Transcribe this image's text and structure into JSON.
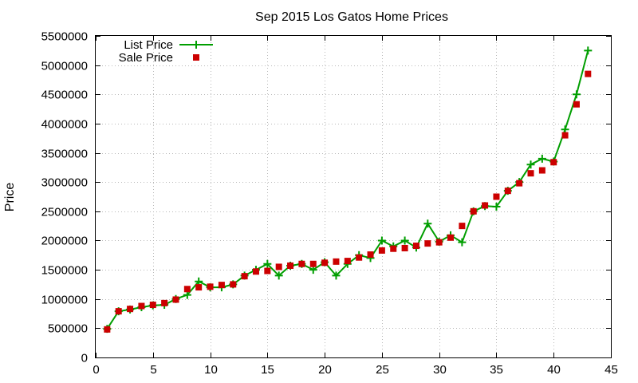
{
  "chart_data": {
    "type": "line",
    "title": "Sep 2015 Los Gatos Home Prices",
    "xlabel": "",
    "ylabel": "Price",
    "xlim": [
      0,
      45
    ],
    "ylim": [
      0,
      5500000
    ],
    "x_ticks": [
      "0",
      "5",
      "10",
      "15",
      "20",
      "25",
      "30",
      "35",
      "40",
      "45"
    ],
    "y_ticks": [
      "0",
      "500000",
      "1000000",
      "1500000",
      "2000000",
      "2500000",
      "3000000",
      "3500000",
      "4000000",
      "4500000",
      "5000000",
      "5500000"
    ],
    "grid": true,
    "legend_position": "top-left",
    "series": [
      {
        "name": "List Price",
        "style": "line-plus",
        "color": "#009e00",
        "x": [
          1,
          2,
          3,
          4,
          5,
          6,
          7,
          8,
          9,
          10,
          11,
          12,
          13,
          14,
          15,
          16,
          17,
          18,
          19,
          20,
          21,
          22,
          23,
          24,
          25,
          26,
          27,
          28,
          29,
          30,
          31,
          32,
          33,
          34,
          35,
          36,
          37,
          38,
          39,
          40,
          41,
          42,
          43
        ],
        "y": [
          490000,
          790000,
          820000,
          860000,
          890000,
          900000,
          1000000,
          1070000,
          1300000,
          1200000,
          1200000,
          1250000,
          1400000,
          1500000,
          1600000,
          1400000,
          1570000,
          1600000,
          1500000,
          1630000,
          1400000,
          1600000,
          1750000,
          1700000,
          2000000,
          1900000,
          2000000,
          1880000,
          2290000,
          1980000,
          2090000,
          1970000,
          2500000,
          2590000,
          2580000,
          2850000,
          3000000,
          3300000,
          3400000,
          3350000,
          3900000,
          4500000,
          5250000
        ]
      },
      {
        "name": "Sale Price",
        "style": "square",
        "color": "#cc0000",
        "x": [
          1,
          2,
          3,
          4,
          5,
          6,
          7,
          8,
          9,
          10,
          11,
          12,
          13,
          14,
          15,
          16,
          17,
          18,
          19,
          20,
          21,
          22,
          23,
          24,
          25,
          26,
          27,
          28,
          29,
          30,
          31,
          32,
          33,
          34,
          35,
          36,
          37,
          38,
          39,
          40,
          41,
          42,
          43
        ],
        "y": [
          480000,
          790000,
          830000,
          880000,
          900000,
          930000,
          990000,
          1170000,
          1200000,
          1210000,
          1240000,
          1250000,
          1390000,
          1470000,
          1480000,
          1550000,
          1570000,
          1600000,
          1600000,
          1620000,
          1640000,
          1650000,
          1710000,
          1760000,
          1830000,
          1860000,
          1870000,
          1910000,
          1950000,
          1970000,
          2050000,
          2250000,
          2500000,
          2600000,
          2750000,
          2850000,
          2980000,
          3150000,
          3200000,
          3340000,
          3800000,
          4330000,
          4850000
        ]
      }
    ]
  }
}
